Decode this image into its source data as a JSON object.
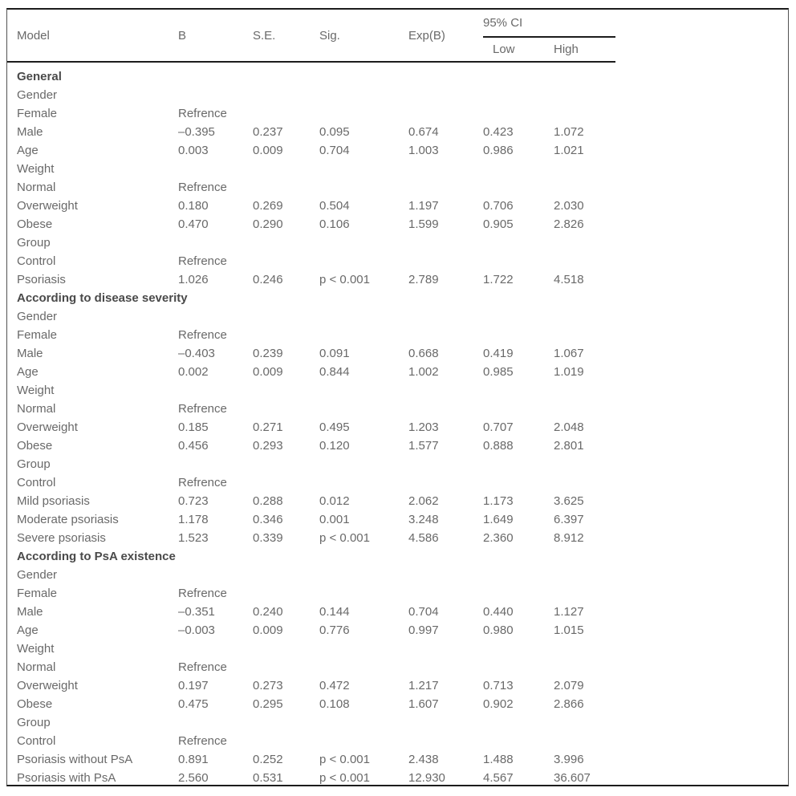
{
  "table": {
    "headers": {
      "model": "Model",
      "b": "B",
      "se": "S.E.",
      "sig": "Sig.",
      "expb": "Exp(B)",
      "ci": "95% CI",
      "low": "Low",
      "high": "High"
    },
    "rows": [
      {
        "type": "section",
        "label": "General"
      },
      {
        "type": "row",
        "label": "Gender",
        "values": [
          "",
          "",
          "",
          "",
          "",
          ""
        ]
      },
      {
        "type": "row",
        "label": "Female",
        "values": [
          "Refrence",
          "",
          "",
          "",
          "",
          ""
        ]
      },
      {
        "type": "row",
        "label": "Male",
        "values": [
          "–0.395",
          "0.237",
          "0.095",
          "0.674",
          "0.423",
          "1.072"
        ]
      },
      {
        "type": "row",
        "label": "Age",
        "values": [
          "0.003",
          "0.009",
          "0.704",
          "1.003",
          "0.986",
          "1.021"
        ]
      },
      {
        "type": "row",
        "label": "Weight",
        "values": [
          "",
          "",
          "",
          "",
          "",
          ""
        ]
      },
      {
        "type": "row",
        "label": "Normal",
        "values": [
          "Refrence",
          "",
          "",
          "",
          "",
          ""
        ]
      },
      {
        "type": "row",
        "label": "Overweight",
        "values": [
          "0.180",
          "0.269",
          "0.504",
          "1.197",
          "0.706",
          "2.030"
        ]
      },
      {
        "type": "row",
        "label": "Obese",
        "values": [
          "0.470",
          "0.290",
          "0.106",
          "1.599",
          "0.905",
          "2.826"
        ]
      },
      {
        "type": "row",
        "label": "Group",
        "values": [
          "",
          "",
          "",
          "",
          "",
          ""
        ]
      },
      {
        "type": "row",
        "label": "Control",
        "values": [
          "Refrence",
          "",
          "",
          "",
          "",
          ""
        ]
      },
      {
        "type": "row",
        "label": "Psoriasis",
        "values": [
          "1.026",
          "0.246",
          "p < 0.001",
          "2.789",
          "1.722",
          "4.518"
        ]
      },
      {
        "type": "section",
        "label": "According to disease severity"
      },
      {
        "type": "row",
        "label": "Gender",
        "values": [
          "",
          "",
          "",
          "",
          "",
          ""
        ]
      },
      {
        "type": "row",
        "label": "Female",
        "values": [
          "Refrence",
          "",
          "",
          "",
          "",
          ""
        ]
      },
      {
        "type": "row",
        "label": "Male",
        "values": [
          "–0.403",
          "0.239",
          "0.091",
          "0.668",
          "0.419",
          "1.067"
        ]
      },
      {
        "type": "row",
        "label": "Age",
        "values": [
          "0.002",
          "0.009",
          "0.844",
          "1.002",
          "0.985",
          "1.019"
        ]
      },
      {
        "type": "row",
        "label": "Weight",
        "values": [
          "",
          "",
          "",
          "",
          "",
          ""
        ]
      },
      {
        "type": "row",
        "label": "Normal",
        "values": [
          "Refrence",
          "",
          "",
          "",
          "",
          ""
        ]
      },
      {
        "type": "row",
        "label": "Overweight",
        "values": [
          "0.185",
          "0.271",
          "0.495",
          "1.203",
          "0.707",
          "2.048"
        ]
      },
      {
        "type": "row",
        "label": "Obese",
        "values": [
          "0.456",
          "0.293",
          "0.120",
          "1.577",
          "0.888",
          "2.801"
        ]
      },
      {
        "type": "row",
        "label": "Group",
        "values": [
          "",
          "",
          "",
          "",
          "",
          ""
        ]
      },
      {
        "type": "row",
        "label": "Control",
        "values": [
          "Refrence",
          "",
          "",
          "",
          "",
          ""
        ]
      },
      {
        "type": "row",
        "label": "Mild psoriasis",
        "values": [
          "0.723",
          "0.288",
          "0.012",
          "2.062",
          "1.173",
          "3.625"
        ]
      },
      {
        "type": "row",
        "label": "Moderate psoriasis",
        "values": [
          "1.178",
          "0.346",
          "0.001",
          "3.248",
          "1.649",
          "6.397"
        ]
      },
      {
        "type": "row",
        "label": "Severe psoriasis",
        "values": [
          "1.523",
          "0.339",
          "p < 0.001",
          "4.586",
          "2.360",
          "8.912"
        ]
      },
      {
        "type": "section",
        "label": "According to PsA existence"
      },
      {
        "type": "row",
        "label": "Gender",
        "values": [
          "",
          "",
          "",
          "",
          "",
          ""
        ]
      },
      {
        "type": "row",
        "label": "Female",
        "values": [
          "Refrence",
          "",
          "",
          "",
          "",
          ""
        ]
      },
      {
        "type": "row",
        "label": "Male",
        "values": [
          "–0.351",
          "0.240",
          "0.144",
          "0.704",
          "0.440",
          "1.127"
        ]
      },
      {
        "type": "row",
        "label": "Age",
        "values": [
          "–0.003",
          "0.009",
          "0.776",
          "0.997",
          "0.980",
          "1.015"
        ]
      },
      {
        "type": "row",
        "label": "Weight",
        "values": [
          "",
          "",
          "",
          "",
          "",
          ""
        ]
      },
      {
        "type": "row",
        "label": "Normal",
        "values": [
          "Refrence",
          "",
          "",
          "",
          "",
          ""
        ]
      },
      {
        "type": "row",
        "label": "Overweight",
        "values": [
          "0.197",
          "0.273",
          "0.472",
          "1.217",
          "0.713",
          "2.079"
        ]
      },
      {
        "type": "row",
        "label": "Obese",
        "values": [
          "0.475",
          "0.295",
          "0.108",
          "1.607",
          "0.902",
          "2.866"
        ]
      },
      {
        "type": "row",
        "label": "Group",
        "values": [
          "",
          "",
          "",
          "",
          "",
          ""
        ]
      },
      {
        "type": "row",
        "label": "Control",
        "values": [
          "Refrence",
          "",
          "",
          "",
          "",
          ""
        ]
      },
      {
        "type": "row",
        "label": "Psoriasis without PsA",
        "values": [
          "0.891",
          "0.252",
          "p < 0.001",
          "2.438",
          "1.488",
          "3.996"
        ]
      },
      {
        "type": "row",
        "label": "Psoriasis with PsA",
        "values": [
          "2.560",
          "0.531",
          "p < 0.001",
          "12.930",
          "4.567",
          "36.607"
        ]
      }
    ],
    "colors": {
      "rule": "#1c1c1c",
      "text": "#696969",
      "section_text": "#4a4a4a"
    }
  }
}
